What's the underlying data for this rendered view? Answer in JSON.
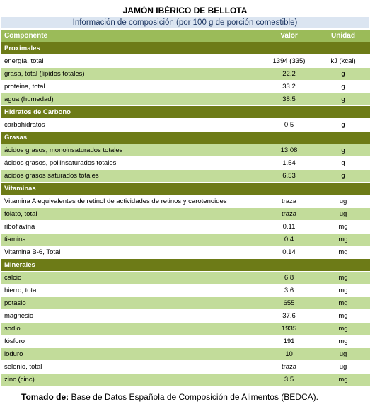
{
  "header": {
    "title": "JAMÓN IBÉRICO DE BELLOTA",
    "subtitle": "Información de composición (por 100 g de porción comestible)"
  },
  "table": {
    "columns": [
      "Componente",
      "Valor",
      "Unidad"
    ],
    "sections": [
      {
        "name": "Proximales",
        "rows": [
          [
            "energía, total",
            "1394 (335)",
            "kJ (kcal)"
          ],
          [
            "grasa, total (lipidos totales)",
            "22.2",
            "g"
          ],
          [
            "proteina, total",
            "33.2",
            "g"
          ],
          [
            "agua (humedad)",
            "38.5",
            "g"
          ]
        ]
      },
      {
        "name": "Hidratos de Carbono",
        "rows": [
          [
            "carbohidratos",
            "0.5",
            "g"
          ]
        ]
      },
      {
        "name": "Grasas",
        "rows": [
          [
            "ácidos grasos, monoinsaturados totales",
            "13.08",
            "g"
          ],
          [
            "ácidos grasos, poliinsaturados totales",
            "1.54",
            "g"
          ],
          [
            "ácidos grasos saturados totales",
            "6.53",
            "g"
          ]
        ]
      },
      {
        "name": "Vitaminas",
        "rows": [
          [
            "Vitamina A equivalentes de retinol de actividades de retinos y carotenoides",
            "traza",
            "ug"
          ],
          [
            "folato, total",
            "traza",
            "ug"
          ],
          [
            "riboflavina",
            "0.11",
            "mg"
          ],
          [
            "tiamina",
            "0.4",
            "mg"
          ],
          [
            "Vitamina B-6, Total",
            "0.14",
            "mg"
          ]
        ]
      },
      {
        "name": "Minerales",
        "rows": [
          [
            "calcio",
            "6.8",
            "mg"
          ],
          [
            "hierro, total",
            "3.6",
            "mg"
          ],
          [
            "potasio",
            "655",
            "mg"
          ],
          [
            "magnesio",
            "37.6",
            "mg"
          ],
          [
            "sodio",
            "1935",
            "mg"
          ],
          [
            "fósforo",
            "191",
            "mg"
          ],
          [
            "ioduro",
            "10",
            "ug"
          ],
          [
            "selenio, total",
            "traza",
            "ug"
          ],
          [
            "zinc (cinc)",
            "3.5",
            "mg"
          ]
        ]
      }
    ]
  },
  "footer": {
    "label": "Tomado de:",
    "text": "Base de Datos Española de Composición de Alimentos (BEDCA)."
  }
}
